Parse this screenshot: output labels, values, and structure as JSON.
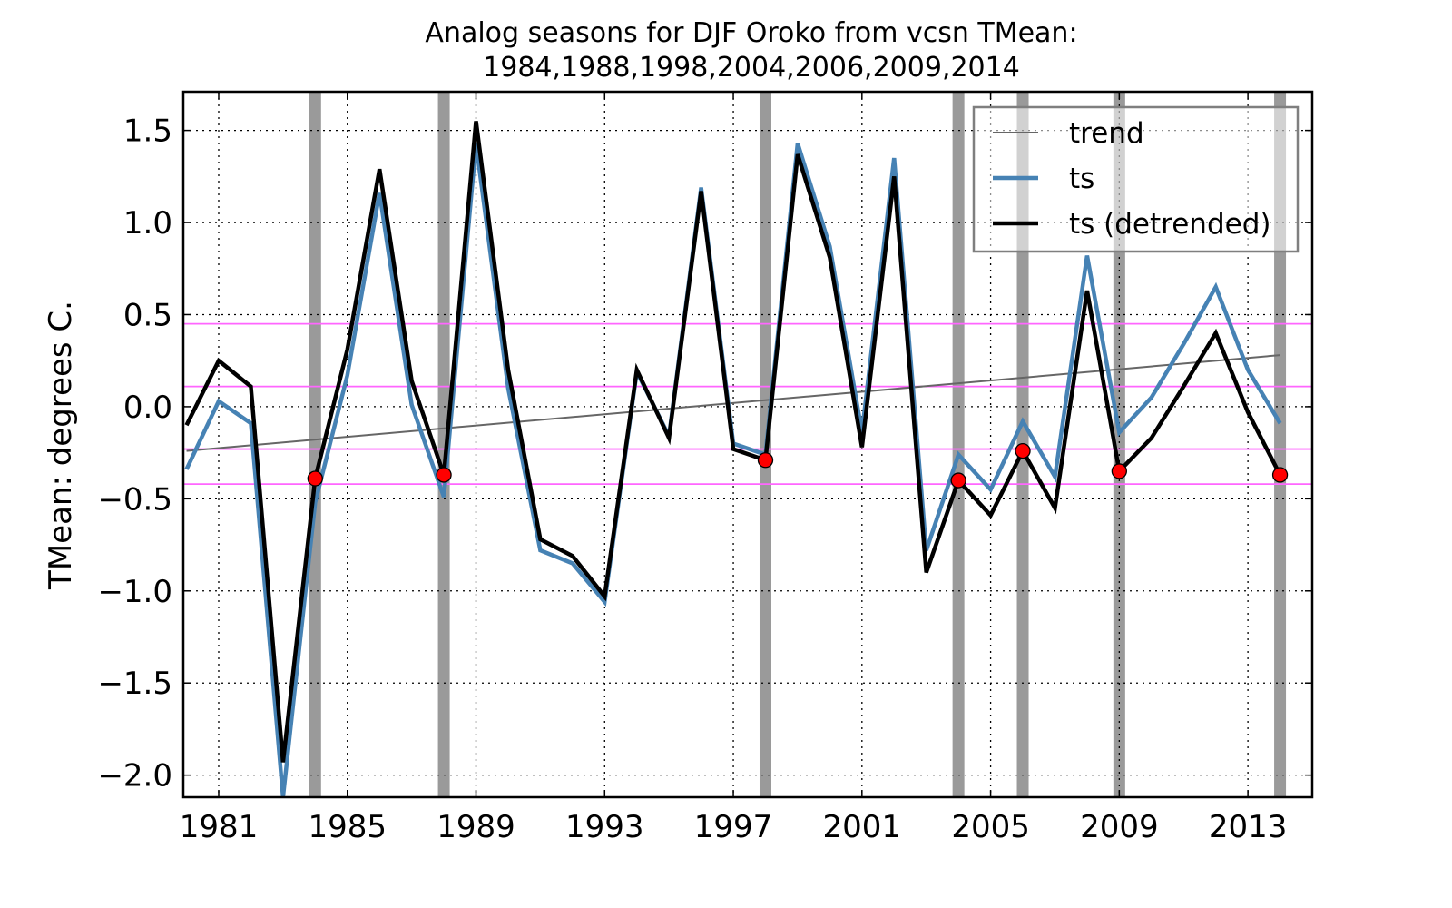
{
  "chart_data": {
    "type": "line",
    "title": "Analog seasons for DJF Oroko from vcsn TMean:",
    "subtitle": "1984,1988,1998,2004,2006,2009,2014",
    "xlabel": "",
    "ylabel": "TMean: degrees C.",
    "xlim": [
      1979.9,
      2015.0
    ],
    "ylim": [
      -2.12,
      1.71
    ],
    "grid": true,
    "legend_position": "top-right",
    "xticks": [
      1981,
      1985,
      1989,
      1993,
      1997,
      2001,
      2005,
      2009,
      2013
    ],
    "xtick_labels": [
      "1981",
      "1985",
      "1989",
      "1993",
      "1997",
      "2001",
      "2005",
      "2009",
      "2013"
    ],
    "yticks": [
      -2.0,
      -1.5,
      -1.0,
      -0.5,
      0.0,
      0.5,
      1.0,
      1.5
    ],
    "ytick_labels": [
      "−2.0",
      "−1.5",
      "−1.0",
      "−0.5",
      "0.0",
      "0.5",
      "1.0",
      "1.5"
    ],
    "x": [
      1980,
      1981,
      1982,
      1983,
      1984,
      1985,
      1986,
      1987,
      1988,
      1989,
      1990,
      1991,
      1992,
      1993,
      1994,
      1995,
      1996,
      1997,
      1998,
      1999,
      2000,
      2001,
      2002,
      2003,
      2004,
      2005,
      2006,
      2007,
      2008,
      2009,
      2010,
      2011,
      2012,
      2013,
      2014
    ],
    "series": [
      {
        "name": "trend",
        "color": "#666666",
        "values_endpoints": [
          [
            1980,
            -0.24
          ],
          [
            2014,
            0.28
          ]
        ]
      },
      {
        "name": "ts",
        "color": "#4682b4",
        "values": [
          -0.34,
          0.03,
          -0.09,
          -2.12,
          -0.52,
          0.17,
          1.16,
          0.01,
          -0.49,
          1.43,
          0.1,
          -0.78,
          -0.85,
          -1.06,
          0.19,
          -0.16,
          1.19,
          -0.2,
          -0.26,
          1.43,
          0.87,
          -0.14,
          1.35,
          -0.78,
          -0.26,
          -0.45,
          -0.08,
          -0.38,
          0.82,
          -0.14,
          0.05,
          0.34,
          0.65,
          0.2,
          -0.09
        ]
      },
      {
        "name": "ts (detrended)",
        "color": "#000000",
        "values": [
          -0.1,
          0.25,
          0.11,
          -1.93,
          -0.39,
          0.31,
          1.29,
          0.14,
          -0.37,
          1.55,
          0.2,
          -0.72,
          -0.81,
          -1.03,
          0.2,
          -0.17,
          1.17,
          -0.23,
          -0.29,
          1.37,
          0.81,
          -0.22,
          1.25,
          -0.9,
          -0.4,
          -0.59,
          -0.24,
          -0.55,
          0.63,
          -0.35,
          -0.17,
          0.11,
          0.4,
          -0.03,
          -0.37
        ]
      }
    ],
    "analog_years": [
      1984,
      1988,
      1998,
      2004,
      2006,
      2009,
      2014
    ],
    "analog_points": [
      {
        "x": 1984,
        "y": -0.39
      },
      {
        "x": 1988,
        "y": -0.37
      },
      {
        "x": 1998,
        "y": -0.29
      },
      {
        "x": 2004,
        "y": -0.4
      },
      {
        "x": 2006,
        "y": -0.24
      },
      {
        "x": 2009,
        "y": -0.35
      },
      {
        "x": 2014,
        "y": -0.37
      }
    ],
    "hlines": [
      0.45,
      0.11,
      -0.23,
      -0.42
    ],
    "colors": {
      "hline": "#ff66ff",
      "analog_band": "#9a9a9a",
      "marker_fill": "#ff0000",
      "marker_edge": "#000000",
      "grid": "#000000"
    }
  }
}
